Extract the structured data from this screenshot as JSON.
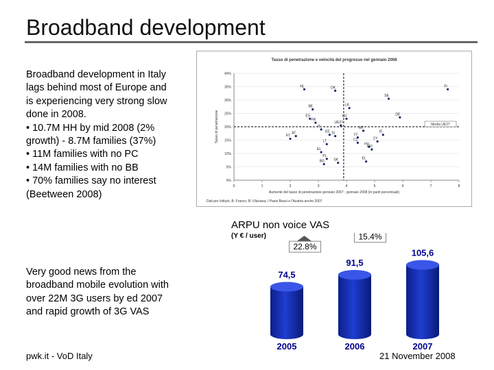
{
  "slide": {
    "title": "Broadband development",
    "intro_lines": [
      "Broadband development in Italy",
      "lags behind most of Europe and",
      "is experiencing very strong slow",
      "done in 2008.",
      "• 10.7M HH by mid 2008 (2%",
      "growth) - 8.7M families (37%)",
      "• 11M families with no PC",
      "• 14M families with no BB",
      "• 70% families say no interest",
      "(Beetween 2008)"
    ],
    "mobile_lines": [
      "Very good news from the",
      "broadband mobile evolution with",
      "over 22M 3G users by ed 2007",
      "and rapid growth of 3G VAS"
    ],
    "footer_left": "pwk.it - VoD Italy",
    "footer_right": "21 November 2008"
  },
  "chart_data": [
    {
      "type": "scatter",
      "title": "Tasso di penetrazione e velocità del progresso nel gennaio 2008",
      "xlabel": "Aumento del tasso di penetrazione gennaio 2007 - gennaio 2008 (in punti percentuali)",
      "ylabel": "Tasso di penetrazione",
      "xlim": [
        0,
        8
      ],
      "ylim": [
        0,
        40
      ],
      "x_ticks": [
        "0",
        "1",
        "2",
        "3",
        "4",
        "5",
        "6",
        "7",
        "8"
      ],
      "y_ticks": [
        "0%",
        "5%",
        "10%",
        "15%",
        "20%",
        "25%",
        "30%",
        "35%",
        "40%"
      ],
      "reference_label": "Media UE27",
      "reference_y": 20,
      "reference_x": 3.9,
      "source": "Dati per Istituto, B. Franco, B. Ulizzana, I Paesi Bassi e l'Austria anche 2007",
      "points": [
        {
          "label": "NL",
          "x": 2.5,
          "y": 34
        },
        {
          "label": "DK",
          "x": 3.6,
          "y": 33.5
        },
        {
          "label": "FI",
          "x": 7.6,
          "y": 34
        },
        {
          "label": "SE",
          "x": 5.5,
          "y": 30.5
        },
        {
          "label": "LK",
          "x": 4.1,
          "y": 27
        },
        {
          "label": "BE",
          "x": 2.8,
          "y": 26.5
        },
        {
          "label": "DE",
          "x": 5.9,
          "y": 23.5
        },
        {
          "label": "LU",
          "x": 4.0,
          "y": 23
        },
        {
          "label": "ES",
          "x": 2.7,
          "y": 23
        },
        {
          "label": "FR",
          "x": 2.9,
          "y": 21.5
        },
        {
          "label": "UE27",
          "x": 3.8,
          "y": 20.5
        },
        {
          "label": "IT",
          "x": 3.1,
          "y": 19
        },
        {
          "label": "MT",
          "x": 4.6,
          "y": 18.5
        },
        {
          "label": "IE",
          "x": 5.3,
          "y": 17
        },
        {
          "label": "AT",
          "x": 2.2,
          "y": 16.5
        },
        {
          "label": "EE",
          "x": 3.4,
          "y": 17
        },
        {
          "label": "SI",
          "x": 3.6,
          "y": 16.5
        },
        {
          "label": "PT",
          "x": 2.0,
          "y": 15.5
        },
        {
          "label": "LV",
          "x": 4.4,
          "y": 16
        },
        {
          "label": "LT",
          "x": 3.3,
          "y": 13.5
        },
        {
          "label": "CZ",
          "x": 4.4,
          "y": 14
        },
        {
          "label": "CY",
          "x": 5.1,
          "y": 14.5
        },
        {
          "label": "HU",
          "x": 4.8,
          "y": 12.5
        },
        {
          "label": "RO",
          "x": 4.9,
          "y": 11.5
        },
        {
          "label": "EL",
          "x": 3.1,
          "y": 10.5
        },
        {
          "label": "PL",
          "x": 3.3,
          "y": 8
        },
        {
          "label": "BG",
          "x": 3.2,
          "y": 6
        },
        {
          "label": "SK",
          "x": 3.7,
          "y": 6.5
        },
        {
          "label": "EL",
          "x": 4.7,
          "y": 7
        }
      ]
    },
    {
      "type": "bar",
      "title": "ARPU non voice VAS",
      "unit": "(Y € / user)",
      "categories": [
        "2005",
        "2006",
        "2007"
      ],
      "values": [
        74.5,
        91.5,
        105.6
      ],
      "value_labels": [
        "74,5",
        "91,5",
        "105,6"
      ],
      "growth_labels": [
        "22.8%",
        "15.4%"
      ],
      "ylim": [
        0,
        115
      ],
      "bar_color": "#1f3dd0",
      "label_color": "#00008b"
    }
  ]
}
